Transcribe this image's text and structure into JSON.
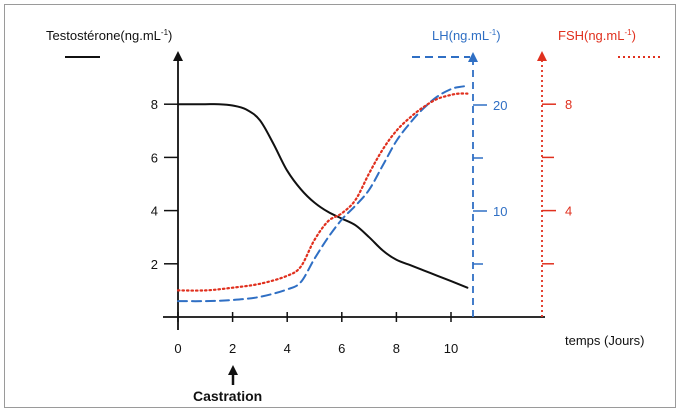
{
  "chart_data": {
    "type": "line",
    "xlabel": "temps (Jours)",
    "x_ticks": [
      0,
      2,
      4,
      6,
      8,
      10
    ],
    "xlim": [
      0,
      10.8
    ],
    "annotation": {
      "label": "Castration",
      "x": 2
    },
    "axes": [
      {
        "key": "testo",
        "label": "Testostérone(ng.mL",
        "exp": "-1",
        "ylim": [
          0,
          10
        ],
        "tick_labels": [
          2,
          4,
          6,
          8
        ],
        "minor_ticks": [],
        "color": "#000000"
      },
      {
        "key": "lh",
        "label": "LH(ng.mL",
        "exp": "-1",
        "ylim": [
          0,
          25
        ],
        "tick_labels": [
          10,
          20
        ],
        "minor_ticks": [
          5,
          15
        ],
        "color": "#2f6fc4"
      },
      {
        "key": "fsh",
        "label": "FSH(ng.mL",
        "exp": "-1",
        "ylim": [
          0,
          10
        ],
        "tick_labels": [
          4,
          8
        ],
        "minor_ticks": [
          2,
          6
        ],
        "color": "#e0301e"
      }
    ],
    "series": [
      {
        "axis": "testo",
        "style": "solid",
        "color": "#111111",
        "x": [
          0,
          0.5,
          1,
          1.5,
          2,
          2.5,
          3,
          3.5,
          4,
          4.5,
          5,
          5.5,
          6,
          6.5,
          7,
          7.5,
          8,
          8.5,
          9,
          9.5,
          10,
          10.6
        ],
        "y": [
          8,
          8,
          8,
          8,
          7.95,
          7.8,
          7.4,
          6.5,
          5.5,
          4.8,
          4.3,
          3.95,
          3.7,
          3.45,
          3.0,
          2.5,
          2.15,
          1.95,
          1.75,
          1.55,
          1.35,
          1.1
        ]
      },
      {
        "axis": "lh",
        "style": "dashed",
        "color": "#2f6fc4",
        "x": [
          0,
          1,
          2,
          3,
          4,
          4.5,
          5,
          5.5,
          6,
          6.5,
          7,
          7.5,
          8,
          8.5,
          9,
          9.5,
          10,
          10.3,
          10.6
        ],
        "y": [
          1.5,
          1.5,
          1.6,
          1.9,
          2.6,
          3.3,
          5.5,
          7.5,
          9.2,
          10.5,
          12.0,
          14.3,
          16.6,
          18.3,
          19.7,
          20.8,
          21.5,
          21.7,
          21.8
        ]
      },
      {
        "axis": "fsh",
        "style": "dotted",
        "color": "#e0301e",
        "x": [
          0,
          1,
          2,
          3,
          4,
          4.5,
          5,
          5.5,
          6,
          6.5,
          7,
          7.5,
          8,
          8.5,
          9,
          9.5,
          10,
          10.3,
          10.6
        ],
        "y": [
          1.0,
          1.0,
          1.1,
          1.25,
          1.55,
          1.9,
          2.9,
          3.6,
          3.9,
          4.4,
          5.4,
          6.3,
          7.0,
          7.5,
          7.9,
          8.2,
          8.35,
          8.4,
          8.4
        ]
      }
    ]
  }
}
